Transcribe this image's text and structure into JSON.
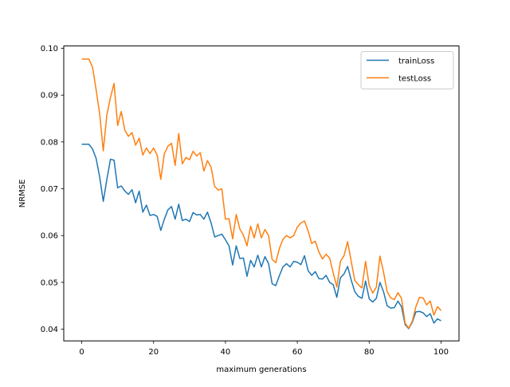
{
  "chart_data": {
    "type": "line",
    "title": "",
    "xlabel": "maximum generations",
    "ylabel": "NRMSE",
    "xlim": [
      -5,
      105
    ],
    "ylim": [
      0.0375,
      0.1005
    ],
    "xticks": [
      0,
      20,
      40,
      60,
      80,
      100
    ],
    "yticks": [
      0.04,
      0.05,
      0.06,
      0.07,
      0.08,
      0.09,
      0.1
    ],
    "ytick_labels": [
      "0.04",
      "0.05",
      "0.06",
      "0.07",
      "0.08",
      "0.09",
      "0.10"
    ],
    "grid": false,
    "legend_position": "top-right",
    "x": [
      0,
      1,
      2,
      3,
      4,
      5,
      6,
      7,
      8,
      9,
      10,
      11,
      12,
      13,
      14,
      15,
      16,
      17,
      18,
      19,
      20,
      21,
      22,
      23,
      24,
      25,
      26,
      27,
      28,
      29,
      30,
      31,
      32,
      33,
      34,
      35,
      36,
      37,
      38,
      39,
      40,
      41,
      42,
      43,
      44,
      45,
      46,
      47,
      48,
      49,
      50,
      51,
      52,
      53,
      54,
      55,
      56,
      57,
      58,
      59,
      60,
      61,
      62,
      63,
      64,
      65,
      66,
      67,
      68,
      69,
      70,
      71,
      72,
      73,
      74,
      75,
      76,
      77,
      78,
      79,
      80,
      81,
      82,
      83,
      84,
      85,
      86,
      87,
      88,
      89,
      90,
      91,
      92,
      93,
      94,
      95,
      96,
      97,
      98,
      99,
      100
    ],
    "series": [
      {
        "name": "trainLoss",
        "color": "#1f77b4",
        "values": [
          0.0795,
          0.0795,
          0.0795,
          0.0785,
          0.0765,
          0.0725,
          0.0673,
          0.072,
          0.0763,
          0.0761,
          0.0702,
          0.0706,
          0.0695,
          0.0688,
          0.0698,
          0.067,
          0.0695,
          0.065,
          0.0665,
          0.0643,
          0.0645,
          0.0641,
          0.0611,
          0.0635,
          0.0655,
          0.0662,
          0.0635,
          0.0667,
          0.0632,
          0.0635,
          0.063,
          0.0649,
          0.0644,
          0.0645,
          0.0635,
          0.065,
          0.0627,
          0.0597,
          0.06,
          0.0603,
          0.0591,
          0.0578,
          0.0537,
          0.0578,
          0.0551,
          0.0552,
          0.0513,
          0.0547,
          0.0533,
          0.0558,
          0.0533,
          0.0555,
          0.054,
          0.0497,
          0.0493,
          0.0514,
          0.0533,
          0.054,
          0.0533,
          0.0545,
          0.0543,
          0.0538,
          0.0557,
          0.0525,
          0.0515,
          0.0523,
          0.0508,
          0.0507,
          0.0515,
          0.05,
          0.0495,
          0.0468,
          0.051,
          0.0518,
          0.0534,
          0.0505,
          0.048,
          0.047,
          0.0466,
          0.0503,
          0.0465,
          0.0458,
          0.0466,
          0.05,
          0.048,
          0.045,
          0.0445,
          0.0446,
          0.046,
          0.0448,
          0.041,
          0.0401,
          0.0415,
          0.0437,
          0.0438,
          0.0435,
          0.0427,
          0.0433,
          0.0413,
          0.0422,
          0.0418
        ]
      },
      {
        "name": "testLoss",
        "color": "#ff7f0e",
        "values": [
          0.0977,
          0.0977,
          0.0977,
          0.096,
          0.0912,
          0.086,
          0.0781,
          0.0858,
          0.0895,
          0.0925,
          0.0835,
          0.0865,
          0.0825,
          0.0812,
          0.082,
          0.0793,
          0.0808,
          0.0772,
          0.0787,
          0.0775,
          0.0787,
          0.0772,
          0.072,
          0.0775,
          0.0791,
          0.0797,
          0.075,
          0.0818,
          0.0753,
          0.0767,
          0.0762,
          0.078,
          0.077,
          0.0777,
          0.0738,
          0.076,
          0.0746,
          0.0705,
          0.0697,
          0.07,
          0.0635,
          0.0636,
          0.0593,
          0.0645,
          0.0614,
          0.0601,
          0.0578,
          0.062,
          0.0595,
          0.0625,
          0.0595,
          0.0613,
          0.06,
          0.0549,
          0.0542,
          0.0572,
          0.0592,
          0.06,
          0.0595,
          0.06,
          0.0618,
          0.0627,
          0.0631,
          0.061,
          0.0583,
          0.0588,
          0.0565,
          0.055,
          0.056,
          0.0552,
          0.052,
          0.049,
          0.0545,
          0.0557,
          0.0587,
          0.0545,
          0.0504,
          0.0495,
          0.0488,
          0.0545,
          0.0494,
          0.0477,
          0.049,
          0.0556,
          0.0522,
          0.048,
          0.0467,
          0.0463,
          0.0478,
          0.0466,
          0.0413,
          0.0402,
          0.0417,
          0.0448,
          0.0468,
          0.0467,
          0.0452,
          0.046,
          0.043,
          0.0448,
          0.044
        ]
      }
    ]
  }
}
